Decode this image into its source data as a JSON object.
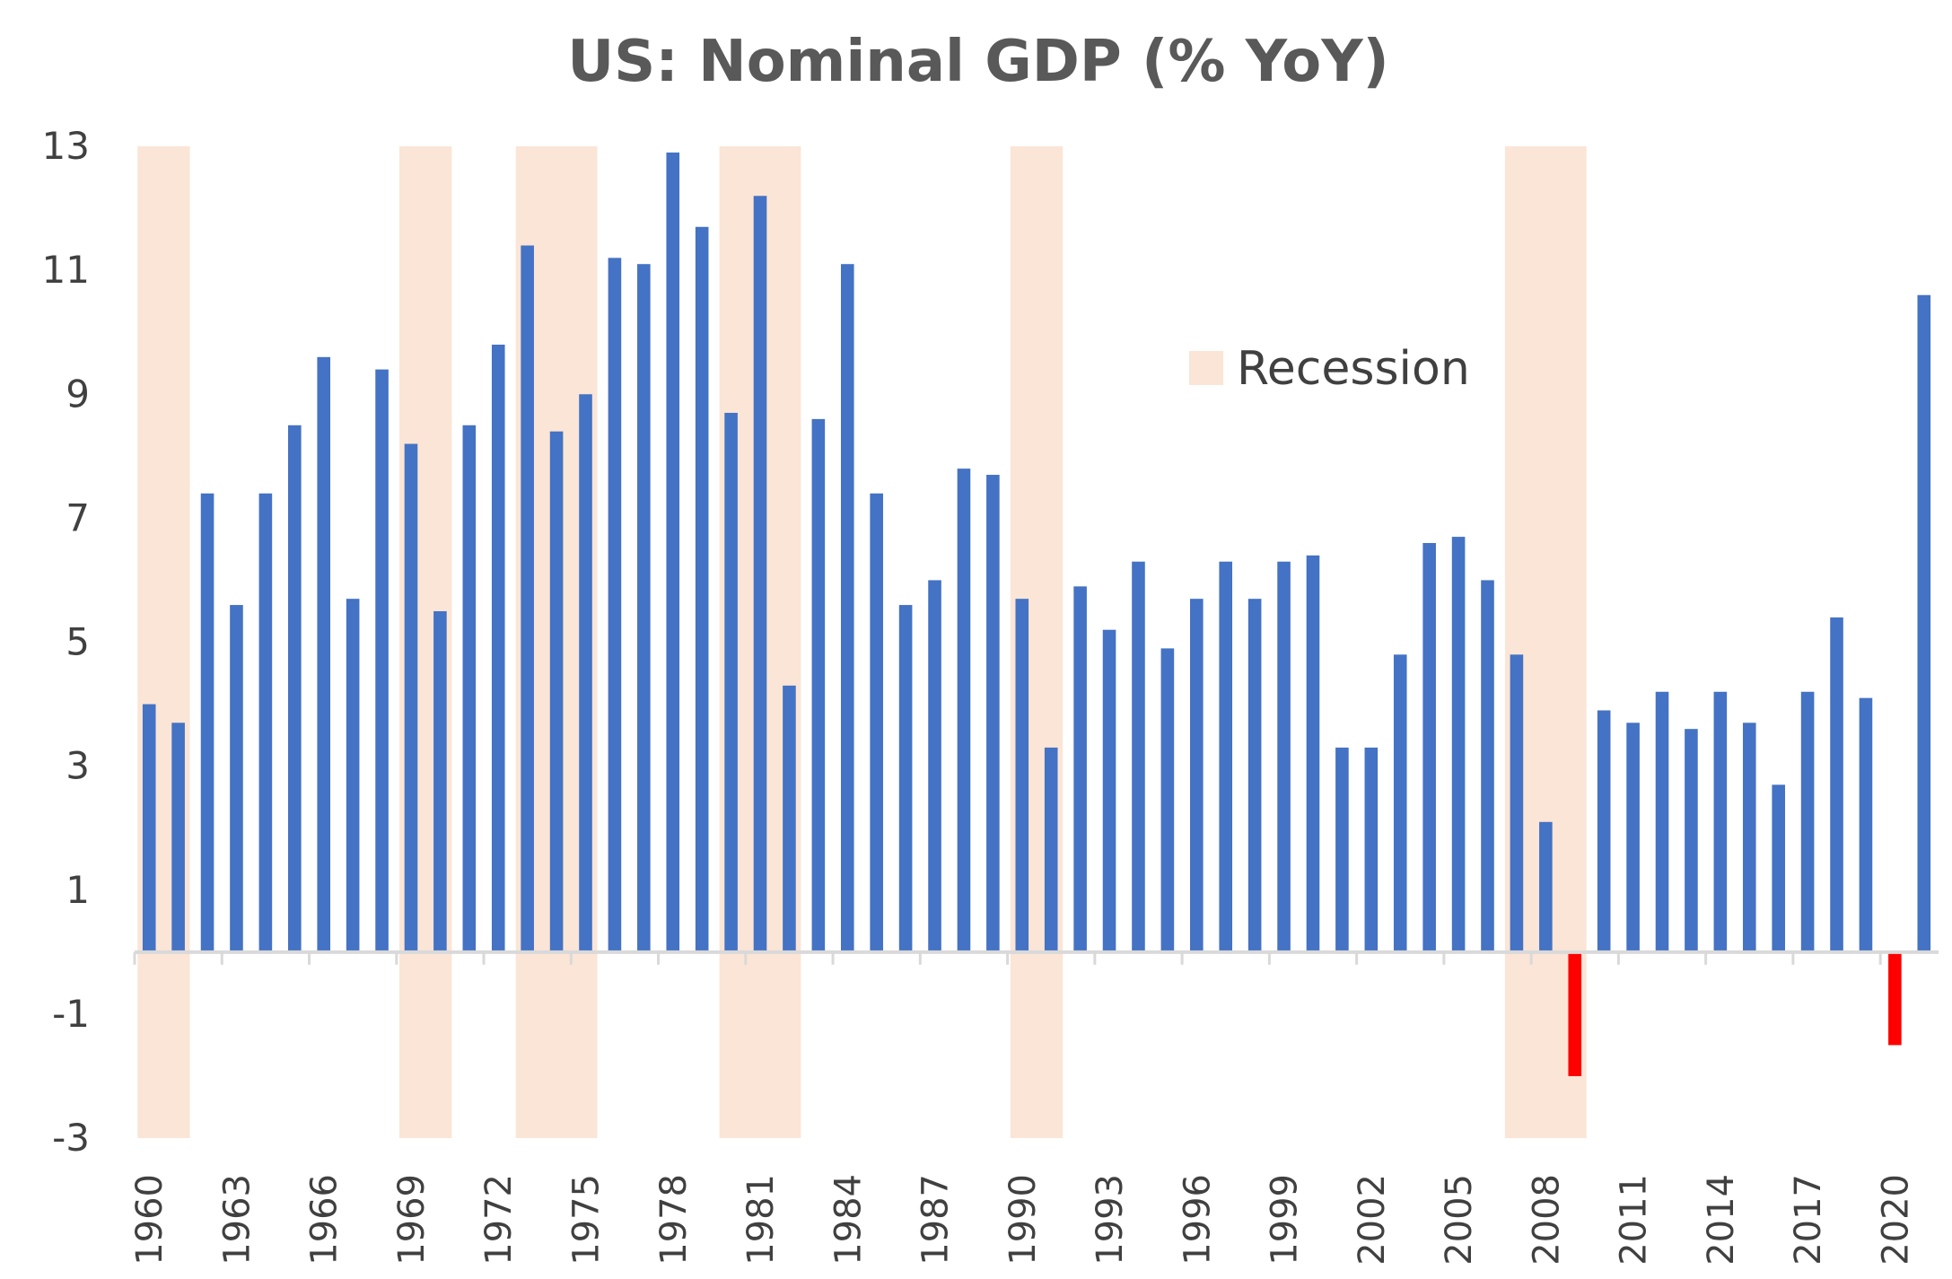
{
  "chart_data": {
    "type": "bar",
    "title": "US: Nominal GDP (% YoY)",
    "xlabel": "",
    "ylabel": "",
    "ylim": [
      -3,
      13
    ],
    "y_ticks": [
      "13",
      "11",
      "9",
      "7",
      "5",
      "3",
      "1",
      "-1",
      "-3"
    ],
    "x_tick_labels": [
      "1960",
      "1963",
      "1966",
      "1969",
      "1972",
      "1975",
      "1978",
      "1981",
      "1984",
      "1987",
      "1990",
      "1993",
      "1996",
      "1999",
      "2002",
      "2005",
      "2008",
      "2011",
      "2014",
      "2017",
      "2020"
    ],
    "legend": {
      "label": "Recession",
      "position": "upper-right"
    },
    "colors": {
      "positive": "#4472C4",
      "negative": "#FF0000",
      "recession": "#FBE5D6"
    },
    "recessions": [
      {
        "start": 1960,
        "end": 1961
      },
      {
        "start": 1969,
        "end": 1970
      },
      {
        "start": 1973,
        "end": 1975
      },
      {
        "start": 1980,
        "end": 1982
      },
      {
        "start": 1990,
        "end": 1991
      },
      {
        "start": 2007,
        "end": 2009
      }
    ],
    "x": [
      1960,
      1961,
      1962,
      1963,
      1964,
      1965,
      1966,
      1967,
      1968,
      1969,
      1970,
      1971,
      1972,
      1973,
      1974,
      1975,
      1976,
      1977,
      1978,
      1979,
      1980,
      1981,
      1982,
      1983,
      1984,
      1985,
      1986,
      1987,
      1988,
      1989,
      1990,
      1991,
      1992,
      1993,
      1994,
      1995,
      1996,
      1997,
      1998,
      1999,
      2000,
      2001,
      2002,
      2003,
      2004,
      2005,
      2006,
      2007,
      2008,
      2009,
      2010,
      2011,
      2012,
      2013,
      2014,
      2015,
      2016,
      2017,
      2018,
      2019,
      2020,
      2021
    ],
    "series": [
      {
        "values": [
          4.0,
          3.7,
          7.4,
          5.6,
          7.4,
          8.5,
          9.6,
          5.7,
          9.4,
          8.2,
          5.5,
          8.5,
          9.8,
          11.4,
          8.4,
          9.0,
          11.2,
          11.1,
          12.9,
          11.7,
          8.7,
          12.2,
          4.3,
          8.6,
          11.1,
          7.4,
          5.6,
          6.0,
          7.8,
          7.7,
          5.7,
          3.3,
          5.9,
          5.2,
          6.3,
          4.9,
          5.7,
          6.3,
          5.7,
          6.3,
          6.4,
          3.3,
          3.3,
          4.8,
          6.6,
          6.7,
          6.0,
          4.8,
          2.1,
          -2.0,
          3.9,
          3.7,
          4.2,
          3.6,
          4.2,
          3.7,
          2.7,
          4.2,
          5.4,
          4.1,
          -1.5,
          10.6
        ]
      }
    ]
  }
}
